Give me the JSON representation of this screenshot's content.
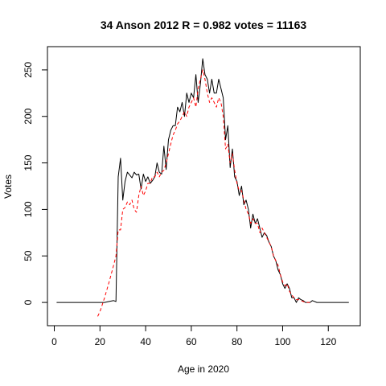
{
  "chart_data": {
    "type": "line",
    "title": "34 Anson 2012 R = 0.982 votes = 11163",
    "xlabel": "Age in 2020",
    "ylabel": "Votes",
    "xlim": [
      -3,
      134
    ],
    "ylim": [
      -25,
      275
    ],
    "xticks": [
      0,
      20,
      40,
      60,
      80,
      100,
      120
    ],
    "yticks": [
      0,
      50,
      100,
      150,
      200,
      250
    ],
    "grid": false,
    "series": [
      {
        "style": "solid",
        "color": "#000000",
        "x": [
          1,
          5,
          10,
          15,
          20,
          22,
          24,
          26,
          27,
          28,
          29,
          30,
          31,
          32,
          33,
          34,
          35,
          36,
          37,
          38,
          39,
          40,
          41,
          42,
          43,
          44,
          45,
          46,
          47,
          48,
          49,
          50,
          51,
          52,
          53,
          54,
          55,
          56,
          57,
          58,
          59,
          60,
          61,
          62,
          63,
          64,
          65,
          66,
          67,
          68,
          69,
          70,
          71,
          72,
          73,
          74,
          75,
          76,
          77,
          78,
          79,
          80,
          81,
          82,
          83,
          84,
          85,
          86,
          87,
          88,
          89,
          90,
          91,
          92,
          93,
          94,
          95,
          96,
          97,
          98,
          99,
          100,
          101,
          102,
          103,
          104,
          105,
          106,
          107,
          108,
          109,
          110,
          111,
          112,
          113,
          115,
          120,
          125,
          129
        ],
        "y": [
          0,
          0,
          0,
          0,
          0,
          0,
          1,
          2,
          1,
          135,
          155,
          110,
          130,
          140,
          137,
          134,
          140,
          137,
          138,
          122,
          138,
          130,
          135,
          128,
          131,
          135,
          150,
          140,
          138,
          168,
          143,
          175,
          185,
          190,
          190,
          210,
          205,
          215,
          200,
          225,
          215,
          225,
          220,
          245,
          215,
          235,
          262,
          245,
          240,
          225,
          240,
          225,
          225,
          240,
          230,
          220,
          175,
          190,
          145,
          165,
          135,
          130,
          115,
          125,
          105,
          110,
          100,
          80,
          95,
          85,
          90,
          80,
          70,
          75,
          72,
          65,
          60,
          50,
          45,
          35,
          30,
          20,
          15,
          20,
          15,
          5,
          5,
          0,
          5,
          3,
          2,
          0,
          0,
          0,
          2,
          0,
          0,
          0,
          0
        ]
      },
      {
        "style": "dashed",
        "color": "#ff0000",
        "x": [
          19,
          20,
          22,
          24,
          26,
          27,
          28,
          29,
          30,
          31,
          32,
          33,
          34,
          35,
          36,
          37,
          38,
          39,
          40,
          41,
          42,
          43,
          44,
          45,
          46,
          47,
          48,
          49,
          50,
          51,
          52,
          53,
          54,
          55,
          56,
          57,
          58,
          59,
          60,
          61,
          62,
          63,
          64,
          65,
          66,
          67,
          68,
          69,
          70,
          71,
          72,
          73,
          74,
          75,
          76,
          77,
          78,
          79,
          80,
          81,
          82,
          83,
          84,
          85,
          86,
          87,
          88,
          89,
          90,
          91,
          92,
          93,
          94,
          95,
          96,
          97,
          98,
          99,
          100,
          101,
          102,
          103,
          104,
          105,
          106,
          107,
          108,
          109,
          110,
          111,
          112
        ],
        "y": [
          -15,
          -10,
          5,
          22,
          40,
          50,
          78,
          78,
          100,
          102,
          108,
          105,
          110,
          100,
          97,
          115,
          125,
          115,
          120,
          128,
          128,
          135,
          135,
          140,
          135,
          140,
          142,
          150,
          160,
          170,
          180,
          185,
          192,
          195,
          200,
          205,
          200,
          210,
          215,
          220,
          210,
          230,
          240,
          250,
          240,
          225,
          215,
          220,
          215,
          210,
          220,
          215,
          200,
          165,
          170,
          150,
          160,
          142,
          128,
          120,
          120,
          110,
          100,
          95,
          85,
          90,
          85,
          85,
          75,
          80,
          75,
          70,
          65,
          60,
          50,
          45,
          40,
          30,
          22,
          18,
          20,
          12,
          8,
          5,
          3,
          3,
          2,
          1,
          0,
          0,
          0
        ]
      }
    ]
  }
}
